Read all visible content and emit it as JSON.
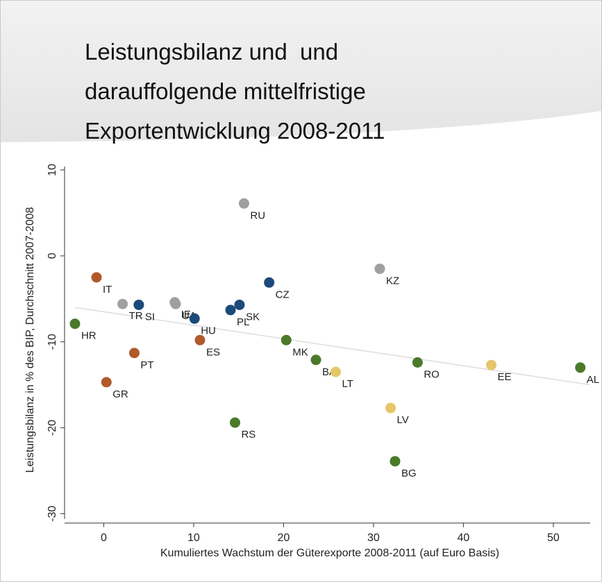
{
  "chart_data": {
    "type": "scatter",
    "title_lines": [
      "Leistungsbilanz und  und",
      "darauffolgende mittelfristige",
      "Exportentwicklung 2008-2011"
    ],
    "x_label": "Kumuliertes Wachstum der Güterexporte 2008-2011 (auf Euro Basis)",
    "y_label": "Leistungsbilanz in % des BIP, Durchschnitt 2007-2008",
    "xlim": [
      -4.2,
      54.1
    ],
    "ylim": [
      -30.6,
      10.4
    ],
    "xticks": [
      0,
      10,
      20,
      30,
      40,
      50
    ],
    "yticks": [
      10,
      0,
      -10,
      -20,
      -30
    ],
    "fit_line": {
      "color": "#dddddd",
      "x": [
        -3.2,
        54.1
      ],
      "values": [
        -6.0,
        -15.0
      ]
    },
    "points": [
      {
        "label": "HR",
        "x": -3.2,
        "y": -7.9,
        "color": "#4a7a2a"
      },
      {
        "label": "IT",
        "x": -0.8,
        "y": -2.5,
        "color": "#b05a2c"
      },
      {
        "label": "GR",
        "x": 0.3,
        "y": -14.7,
        "color": "#b05a2c"
      },
      {
        "label": "TR",
        "x": 2.1,
        "y": -5.6,
        "color": "#a0a0a0"
      },
      {
        "label": "SI",
        "x": 3.9,
        "y": -5.7,
        "color": "#1c4a7a"
      },
      {
        "label": "PT",
        "x": 3.4,
        "y": -11.3,
        "color": "#b05a2c"
      },
      {
        "label": "UA",
        "x": 8.0,
        "y": -5.6,
        "color": "#a0a0a0"
      },
      {
        "label": "IE",
        "x": 7.9,
        "y": -5.4,
        "color": "#a0a0a0"
      },
      {
        "label": "HU",
        "x": 10.1,
        "y": -7.3,
        "color": "#1c4a7a"
      },
      {
        "label": "ES",
        "x": 10.7,
        "y": -9.8,
        "color": "#b05a2c"
      },
      {
        "label": "PL",
        "x": 14.1,
        "y": -6.3,
        "color": "#1c4a7a"
      },
      {
        "label": "SK",
        "x": 15.1,
        "y": -5.7,
        "color": "#1c4a7a"
      },
      {
        "label": "RU",
        "x": 15.6,
        "y": 6.1,
        "color": "#a0a0a0"
      },
      {
        "label": "CZ",
        "x": 18.4,
        "y": -3.1,
        "color": "#1c4a7a"
      },
      {
        "label": "RS",
        "x": 14.6,
        "y": -19.4,
        "color": "#4a7a2a"
      },
      {
        "label": "MK",
        "x": 20.3,
        "y": -9.8,
        "color": "#4a7a2a"
      },
      {
        "label": "BA",
        "x": 23.6,
        "y": -12.1,
        "color": "#4a7a2a"
      },
      {
        "label": "LT",
        "x": 25.8,
        "y": -13.5,
        "color": "#e6c66a"
      },
      {
        "label": "KZ",
        "x": 30.7,
        "y": -1.5,
        "color": "#a0a0a0"
      },
      {
        "label": "LV",
        "x": 31.9,
        "y": -17.7,
        "color": "#e6c66a"
      },
      {
        "label": "BG",
        "x": 32.4,
        "y": -23.9,
        "color": "#4a7a2a"
      },
      {
        "label": "RO",
        "x": 34.9,
        "y": -12.4,
        "color": "#4a7a2a"
      },
      {
        "label": "EE",
        "x": 43.1,
        "y": -12.7,
        "color": "#e6c66a"
      },
      {
        "label": "AL",
        "x": 53.0,
        "y": -13.0,
        "color": "#4a7a2a"
      }
    ]
  }
}
